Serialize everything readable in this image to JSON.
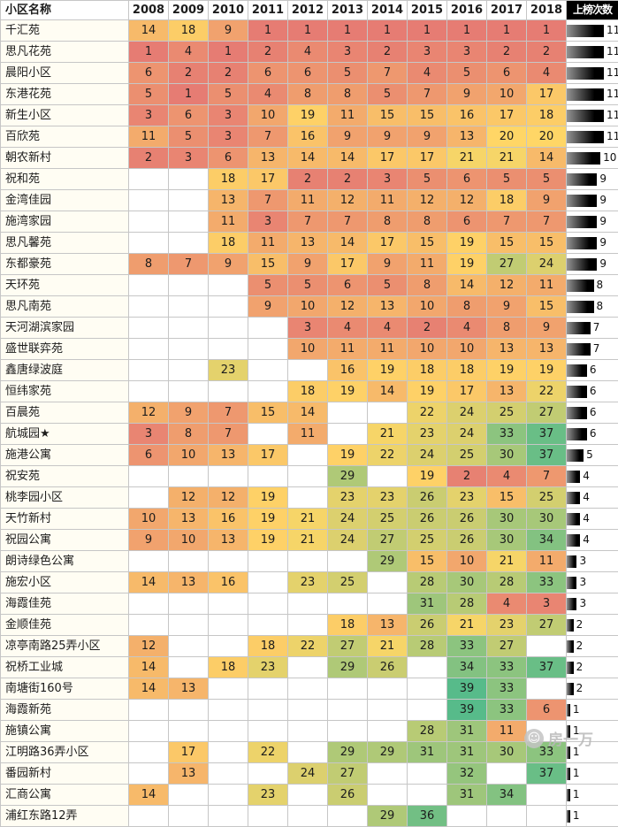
{
  "chart_data": {
    "type": "heatmap",
    "title": "",
    "name_header": "小区名称",
    "count_header": "上榜次数",
    "columns": [
      "2008",
      "2009",
      "2010",
      "2011",
      "2012",
      "2013",
      "2014",
      "2015",
      "2016",
      "2017",
      "2018"
    ],
    "rows": [
      {
        "name": "千汇苑",
        "values": [
          14,
          18,
          9,
          1,
          1,
          1,
          1,
          1,
          1,
          1,
          1
        ],
        "count": 11
      },
      {
        "name": "思凡花苑",
        "values": [
          1,
          4,
          1,
          2,
          4,
          3,
          2,
          3,
          3,
          2,
          2
        ],
        "count": 11
      },
      {
        "name": "晨阳小区",
        "values": [
          6,
          2,
          2,
          6,
          6,
          5,
          7,
          4,
          5,
          6,
          4
        ],
        "count": 11
      },
      {
        "name": "东港花苑",
        "values": [
          5,
          1,
          5,
          4,
          8,
          8,
          5,
          7,
          9,
          10,
          17
        ],
        "count": 11
      },
      {
        "name": "新生小区",
        "values": [
          3,
          6,
          3,
          10,
          19,
          11,
          15,
          15,
          16,
          17,
          18
        ],
        "count": 11
      },
      {
        "name": "百欣苑",
        "values": [
          11,
          5,
          3,
          7,
          16,
          9,
          9,
          9,
          13,
          20,
          20
        ],
        "count": 11
      },
      {
        "name": "朝农新村",
        "values": [
          2,
          3,
          6,
          13,
          14,
          14,
          17,
          17,
          21,
          21,
          14
        ],
        "count": 10
      },
      {
        "name": "祝和苑",
        "values": [
          null,
          null,
          18,
          17,
          2,
          2,
          3,
          5,
          6,
          5,
          5
        ],
        "count": 9
      },
      {
        "name": "金湾佳园",
        "values": [
          null,
          null,
          13,
          7,
          11,
          12,
          11,
          12,
          12,
          18,
          9
        ],
        "count": 9
      },
      {
        "name": "施湾家园",
        "values": [
          null,
          null,
          11,
          3,
          7,
          7,
          8,
          8,
          6,
          7,
          7
        ],
        "count": 9
      },
      {
        "name": "思凡馨苑",
        "values": [
          null,
          null,
          18,
          11,
          13,
          14,
          17,
          15,
          19,
          15,
          15
        ],
        "count": 9
      },
      {
        "name": "东都豪苑",
        "values": [
          8,
          7,
          9,
          15,
          9,
          17,
          9,
          11,
          19,
          27,
          24
        ],
        "count": 9
      },
      {
        "name": "天环苑",
        "values": [
          null,
          null,
          null,
          5,
          5,
          6,
          5,
          8,
          14,
          12,
          11
        ],
        "count": 8
      },
      {
        "name": "思凡南苑",
        "values": [
          null,
          null,
          null,
          9,
          10,
          12,
          13,
          10,
          8,
          9,
          15
        ],
        "count": 8
      },
      {
        "name": "天河湖滨家园",
        "values": [
          null,
          null,
          null,
          null,
          3,
          4,
          4,
          2,
          4,
          8,
          9
        ],
        "count": 7
      },
      {
        "name": "盛世联弈苑",
        "values": [
          null,
          null,
          null,
          null,
          10,
          11,
          11,
          10,
          10,
          13,
          13
        ],
        "count": 7
      },
      {
        "name": "鑫唐绿波庭",
        "values": [
          null,
          null,
          23,
          null,
          null,
          16,
          19,
          18,
          18,
          19,
          19
        ],
        "count": 6
      },
      {
        "name": "恒纬家苑",
        "values": [
          null,
          null,
          null,
          null,
          18,
          19,
          14,
          19,
          17,
          13,
          22
        ],
        "count": 6
      },
      {
        "name": "百晨苑",
        "values": [
          12,
          9,
          7,
          15,
          14,
          null,
          null,
          22,
          24,
          25,
          27
        ],
        "count": 6
      },
      {
        "name": "航城园★",
        "values": [
          3,
          8,
          7,
          null,
          11,
          null,
          21,
          23,
          24,
          33,
          37
        ],
        "count": 6
      },
      {
        "name": "施港公寓",
        "values": [
          6,
          10,
          13,
          17,
          null,
          19,
          22,
          24,
          25,
          30,
          37
        ],
        "count": 5
      },
      {
        "name": "祝安苑",
        "values": [
          null,
          null,
          null,
          null,
          null,
          29,
          null,
          19,
          2,
          4,
          7
        ],
        "count": 4
      },
      {
        "name": "桃李园小区",
        "values": [
          null,
          12,
          12,
          19,
          null,
          23,
          23,
          26,
          23,
          15,
          25
        ],
        "count": 4
      },
      {
        "name": "天竹新村",
        "values": [
          10,
          13,
          16,
          19,
          21,
          24,
          25,
          26,
          26,
          30,
          30
        ],
        "count": 4
      },
      {
        "name": "祝园公寓",
        "values": [
          9,
          10,
          13,
          19,
          21,
          24,
          27,
          25,
          26,
          30,
          34
        ],
        "count": 4
      },
      {
        "name": "朗诗绿色公寓",
        "values": [
          null,
          null,
          null,
          null,
          null,
          null,
          29,
          15,
          10,
          21,
          11
        ],
        "count": 3
      },
      {
        "name": "施宏小区",
        "values": [
          14,
          13,
          16,
          null,
          23,
          25,
          null,
          28,
          30,
          28,
          33
        ],
        "count": 3
      },
      {
        "name": "海霞佳苑",
        "values": [
          null,
          null,
          null,
          null,
          null,
          null,
          null,
          31,
          28,
          4,
          3
        ],
        "count": 3
      },
      {
        "name": "金顺佳苑",
        "values": [
          null,
          null,
          null,
          null,
          null,
          18,
          13,
          26,
          21,
          23,
          27
        ],
        "count": 2
      },
      {
        "name": "凉亭南路25弄小区",
        "values": [
          12,
          null,
          null,
          18,
          22,
          27,
          21,
          28,
          33,
          27,
          null
        ],
        "count": 2
      },
      {
        "name": "祝桥工业城",
        "values": [
          14,
          null,
          18,
          23,
          null,
          29,
          26,
          null,
          34,
          33,
          37
        ],
        "count": 2
      },
      {
        "name": "南塘街160号",
        "values": [
          14,
          13,
          null,
          null,
          null,
          null,
          null,
          null,
          39,
          33,
          null
        ],
        "count": 2
      },
      {
        "name": "海霞新苑",
        "values": [
          null,
          null,
          null,
          null,
          null,
          null,
          null,
          null,
          39,
          33,
          6
        ],
        "count": 1
      },
      {
        "name": "施镇公寓",
        "values": [
          null,
          null,
          null,
          null,
          null,
          null,
          null,
          28,
          31,
          11,
          null
        ],
        "count": 1
      },
      {
        "name": "江明路36弄小区",
        "values": [
          null,
          17,
          null,
          22,
          null,
          29,
          29,
          31,
          31,
          30,
          33
        ],
        "count": 1
      },
      {
        "name": "番园新村",
        "values": [
          null,
          13,
          null,
          null,
          24,
          27,
          null,
          null,
          32,
          null,
          37
        ],
        "count": 1
      },
      {
        "name": "汇商公寓",
        "values": [
          14,
          null,
          null,
          23,
          null,
          26,
          null,
          null,
          31,
          34,
          null
        ],
        "count": 1
      },
      {
        "name": "浦红东路12弄",
        "values": [
          null,
          null,
          null,
          null,
          null,
          null,
          29,
          36,
          null,
          null,
          null
        ],
        "count": 1
      }
    ],
    "color_scale": {
      "min": {
        "value": 1,
        "color": "#e67c73"
      },
      "mid": {
        "value": 20,
        "color": "#ffd666"
      },
      "max": {
        "value": 39,
        "color": "#57bb8a"
      }
    },
    "count_bar": {
      "max": 11,
      "gradient": [
        "#949494",
        "#000000"
      ]
    },
    "legend_position": "none",
    "grid": true
  },
  "watermark": {
    "text": "房一万",
    "logo": "smiley-logo"
  }
}
